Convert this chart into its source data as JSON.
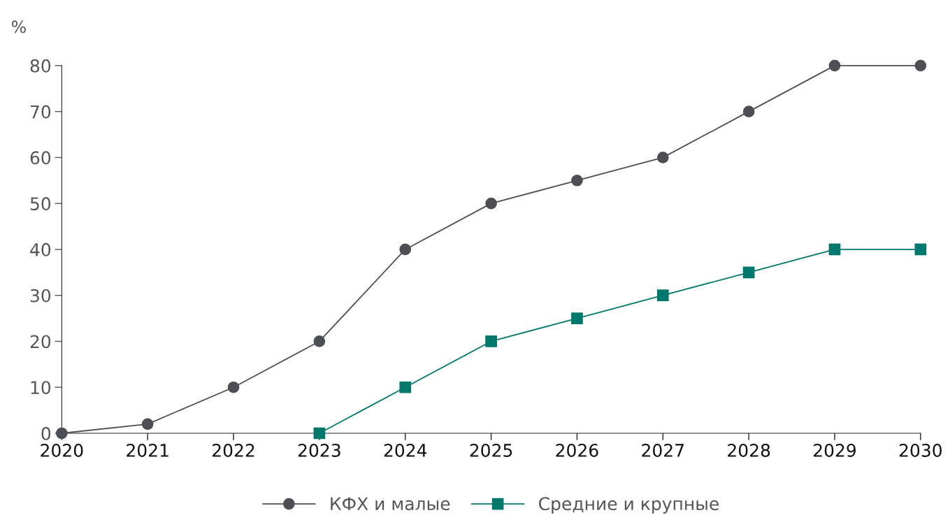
{
  "chart_data": {
    "type": "line",
    "ylabel": "%",
    "categories": [
      "2020",
      "2021",
      "2022",
      "2023",
      "2024",
      "2025",
      "2026",
      "2027",
      "2028",
      "2029",
      "2030"
    ],
    "series": [
      {
        "name": "КФХ и малые",
        "color": "#4d4f55",
        "marker": "circle",
        "values": [
          0,
          2,
          10,
          20,
          40,
          50,
          55,
          60,
          70,
          80,
          80
        ]
      },
      {
        "name": "Средние и крупные",
        "color": "#00786b",
        "marker": "square",
        "values": [
          null,
          null,
          null,
          0,
          10,
          20,
          25,
          30,
          35,
          40,
          40
        ]
      }
    ],
    "ylim": [
      0,
      80
    ],
    "yticks": [
      0,
      10,
      20,
      30,
      40,
      50,
      60,
      70,
      80
    ],
    "grid": false,
    "legend": "bottom",
    "line_style": "solid"
  }
}
